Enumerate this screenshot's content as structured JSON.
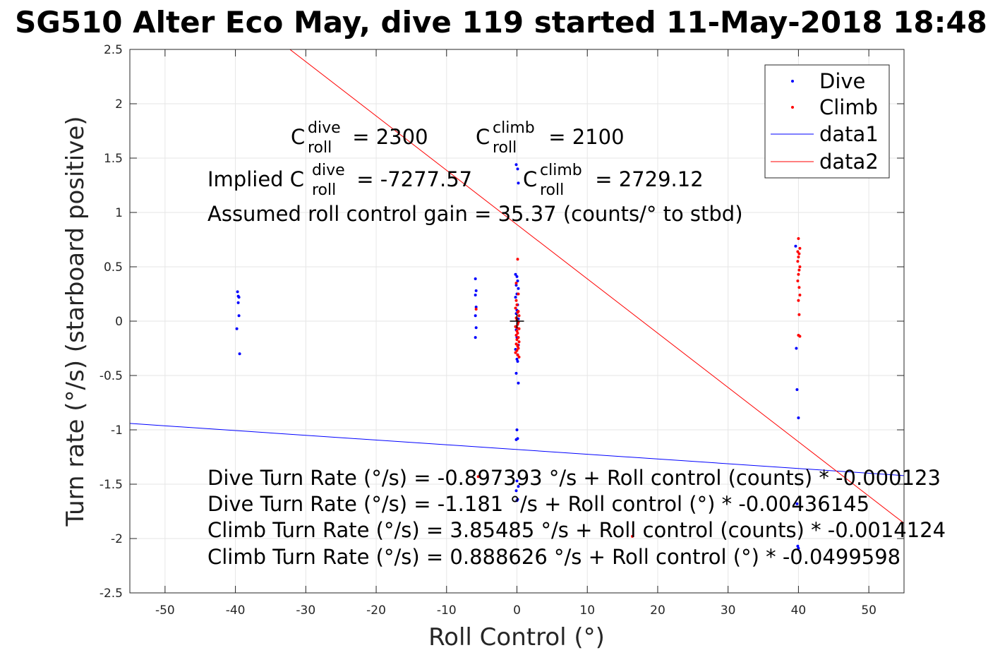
{
  "chart_data": {
    "type": "scatter",
    "title": "SG510 Alter Eco May, dive 119 started 11-May-2018 18:48",
    "xlabel": "Roll Control (°)",
    "ylabel": "Turn rate (°/s) (starboard positive)",
    "xlim": [
      -55,
      55
    ],
    "ylim": [
      -2.5,
      2.5
    ],
    "x_ticks": [
      -50,
      -40,
      -30,
      -20,
      -10,
      0,
      10,
      20,
      30,
      40,
      50
    ],
    "y_ticks": [
      -2.5,
      -2,
      -1.5,
      -1,
      -0.5,
      0,
      0.5,
      1,
      1.5,
      2,
      2.5
    ],
    "y_tick_labels": [
      "-2.5",
      "-2",
      "-1.5",
      "-1",
      "-0.5",
      "0",
      "0.5",
      "1",
      "1.5",
      "2",
      "2.5"
    ],
    "grid": true,
    "legend_position": "top-right",
    "colors": {
      "dive": "#0000ff",
      "climb": "#ff0000",
      "grid": "#e6e6e6",
      "axis": "#262626"
    },
    "series": [
      {
        "name": "Dive",
        "kind": "points",
        "color": "#0000ff",
        "x": [
          -39.7,
          -39.6,
          -39.5,
          -39.6,
          -39.5,
          -39.8,
          -39.4,
          -5.9,
          -5.8,
          -5.9,
          -5.8,
          -5.9,
          -5.8,
          -5.9,
          -0.1,
          0.1,
          0.2,
          -0.2,
          0.0,
          0.1,
          -0.1,
          0.2,
          0.0,
          -0.2,
          0.1,
          0.0,
          -0.1,
          0.2,
          0.1,
          -0.1,
          0.0,
          0.2,
          -0.2,
          0.1,
          0.0,
          0.1,
          -0.1,
          0.2,
          0.0,
          -0.1,
          0.1,
          0.0,
          0.2,
          -0.1,
          0.1,
          0.0,
          39.6,
          39.7,
          39.8,
          40.0,
          39.8,
          39.9,
          40.0
        ],
        "y": [
          0.27,
          0.23,
          0.22,
          0.17,
          0.05,
          -0.07,
          -0.3,
          0.39,
          0.28,
          0.24,
          0.13,
          0.05,
          -0.06,
          -0.15,
          1.44,
          1.4,
          1.27,
          0.43,
          0.41,
          0.37,
          0.33,
          0.3,
          0.25,
          0.22,
          0.15,
          0.1,
          0.07,
          0.02,
          -0.02,
          -0.08,
          -0.15,
          -0.22,
          -0.26,
          -0.31,
          -0.35,
          -0.37,
          -0.48,
          -0.57,
          -1.0,
          -1.09,
          -1.08,
          -1.47,
          -1.52,
          -1.56,
          -1.64,
          -1.65,
          0.69,
          -0.25,
          -0.63,
          -0.89,
          -1.68,
          -2.07,
          -2.09
        ]
      },
      {
        "name": "Climb",
        "kind": "points",
        "color": "#ff0000",
        "x": [
          -5.8,
          -5.5,
          0.1,
          -0.1,
          0.2,
          0.0,
          -0.2,
          0.1,
          0.3,
          -0.1,
          0.0,
          0.2,
          0.1,
          -0.2,
          0.3,
          0.0,
          0.1,
          -0.1,
          0.2,
          0.0,
          0.3,
          -0.1,
          0.1,
          0.2,
          0.0,
          -0.2,
          0.1,
          0.3,
          0.0,
          0.2,
          -0.1,
          0.1,
          40.0,
          40.2,
          39.9,
          40.1,
          40.0,
          39.9,
          40.2,
          40.1,
          40.0,
          39.9,
          40.1,
          40.2,
          40.0,
          40.1,
          40.0,
          40.2,
          16.4
        ],
        "y": [
          0.11,
          -1.43,
          0.57,
          0.35,
          0.25,
          0.15,
          0.12,
          0.08,
          0.05,
          0.03,
          0.01,
          -0.01,
          -0.03,
          -0.05,
          -0.07,
          -0.09,
          -0.11,
          -0.13,
          -0.15,
          -0.17,
          -0.19,
          -0.21,
          -0.23,
          -0.25,
          -0.27,
          -0.29,
          -0.31,
          -0.33,
          -0.06,
          0.09,
          0.19,
          -0.22,
          0.76,
          0.67,
          0.64,
          0.62,
          0.59,
          0.55,
          0.5,
          0.47,
          0.43,
          0.37,
          0.31,
          0.24,
          0.19,
          0.06,
          -0.13,
          -0.14,
          -1.98
        ]
      },
      {
        "name": "data1",
        "kind": "line",
        "color": "#0000ff",
        "x": [
          -55,
          55
        ],
        "y": [
          -0.941,
          -1.421
        ]
      },
      {
        "name": "data2",
        "kind": "line",
        "color": "#ff0000",
        "x": [
          -55,
          55
        ],
        "y": [
          3.636,
          -1.859
        ]
      }
    ],
    "origin_marker": {
      "x": 0,
      "y": 0,
      "symbol": "+"
    },
    "annotations": {
      "c_roll_dive_label": "C",
      "c_roll_dive_sup": "dive",
      "c_roll_dive_sub": "roll",
      "c_roll_dive_value": " = 2300",
      "c_roll_climb_label": "C",
      "c_roll_climb_sup": "climb",
      "c_roll_climb_sub": "roll",
      "c_roll_climb_value": " = 2100",
      "implied_prefix": "Implied C",
      "implied_dive_sup": "dive",
      "implied_dive_sub": "roll",
      "implied_dive_value": " = -7277.57",
      "implied_climb_label": "C",
      "implied_climb_sup": "climb",
      "implied_climb_sub": "roll",
      "implied_climb_value": " = 2729.12",
      "gain": "Assumed roll control gain = 35.37 (counts/° to stbd)",
      "fit_lines": [
        "Dive Turn Rate (°/s) = -0.897393 °/s + Roll control (counts) * -0.000123",
        "Dive Turn Rate (°/s) = -1.181 °/s + Roll control (°) * -0.00436145",
        "Climb Turn Rate (°/s) = 3.85485 °/s + Roll control (counts) * -0.0014124",
        "Climb Turn Rate (°/s) = 0.888626 °/s + Roll control (°) * -0.0499598"
      ]
    }
  }
}
